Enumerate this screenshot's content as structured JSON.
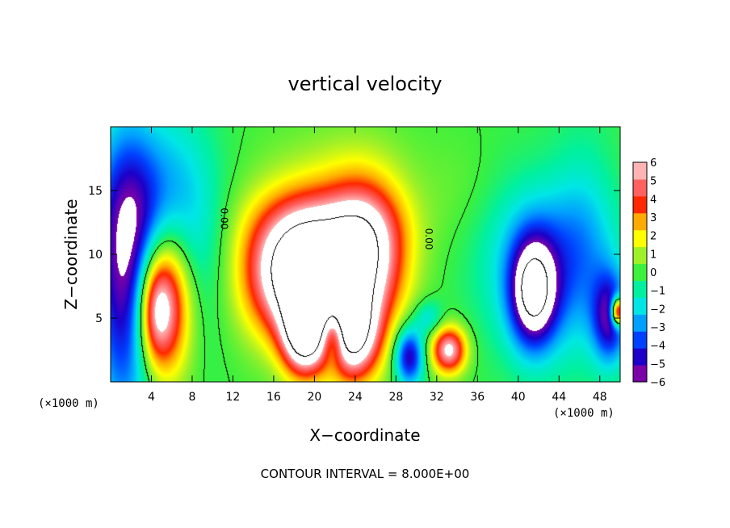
{
  "chart_data": {
    "type": "heatmap",
    "title": "vertical velocity",
    "xlabel": "X−coordinate",
    "ylabel": "Z−coordinate",
    "x_unit_label": "(×1000 m)",
    "z_unit_label": "(×1000 m)",
    "xlim": [
      0,
      50
    ],
    "ylim": [
      0,
      20
    ],
    "x_ticks": [
      4,
      8,
      12,
      16,
      20,
      24,
      28,
      32,
      36,
      40,
      44,
      48
    ],
    "y_ticks": [
      5,
      10,
      15
    ],
    "x_tick_labels": [
      "4",
      "8",
      "12",
      "16",
      "20",
      "24",
      "28",
      "32",
      "36",
      "40",
      "44",
      "48"
    ],
    "y_tick_labels": [
      "5",
      "10",
      "15"
    ],
    "colorbar": {
      "min": -6,
      "max": 6,
      "tick_values": [
        6,
        5,
        4,
        3,
        2,
        1,
        0,
        -1,
        -2,
        -3,
        -4,
        -5,
        -6
      ],
      "tick_labels": [
        "6",
        "5",
        "4",
        "3",
        "2",
        "1",
        "0",
        "−1",
        "−2",
        "−3",
        "−4",
        "−5",
        "−6"
      ],
      "colors": [
        "#7a00a8",
        "#1c00c8",
        "#0040ff",
        "#00a0ff",
        "#00e6e6",
        "#00f0a0",
        "#3cf03c",
        "#a0f028",
        "#ffff00",
        "#ffaa00",
        "#ff2800",
        "#ff6060",
        "#ffb4b4"
      ]
    },
    "contour_labels": [
      {
        "text": "0.00",
        "x": 10.8,
        "y": 12.8
      },
      {
        "text": "0.00",
        "x": 30.9,
        "y": 11.2
      }
    ],
    "footer": "CONTOUR INTERVAL = 8.000E+00",
    "field_features": [
      {
        "x": 5.5,
        "z": 6.5,
        "sx": 1.8,
        "sz": 4.2,
        "a": 7
      },
      {
        "x": 4.2,
        "z": 5.5,
        "sx": 1.2,
        "sz": 3,
        "a": 4
      },
      {
        "x": 1.4,
        "z": 8,
        "sx": 2.2,
        "sz": 8,
        "a": -5.5
      },
      {
        "x": 6.5,
        "z": 12,
        "sx": 3,
        "sz": 6,
        "a": -3
      },
      {
        "x": 2.5,
        "z": 14,
        "sx": 3,
        "sz": 4,
        "a": -1.5
      },
      {
        "x": 16.5,
        "z": 8.5,
        "sx": 3,
        "sz": 3.5,
        "a": 5.5
      },
      {
        "x": 19.5,
        "z": 8,
        "sx": 2.5,
        "sz": 3.5,
        "a": 6.5
      },
      {
        "x": 19,
        "z": 3.5,
        "sx": 1.5,
        "sz": 2.2,
        "a": 7
      },
      {
        "x": 24.8,
        "z": 9.5,
        "sx": 2.8,
        "sz": 4,
        "a": 8
      },
      {
        "x": 23.8,
        "z": 3.5,
        "sx": 1.8,
        "sz": 2.5,
        "a": 7
      },
      {
        "x": 21,
        "z": 12.5,
        "sx": 5,
        "sz": 2.5,
        "a": 2.5
      },
      {
        "x": 22,
        "z": 17.5,
        "sx": 5,
        "sz": 2.5,
        "a": 0.6
      },
      {
        "x": 33.2,
        "z": 2.5,
        "sx": 1.2,
        "sz": 1.3,
        "a": 6.5
      },
      {
        "x": 29.3,
        "z": 2,
        "sx": 1,
        "sz": 1.6,
        "a": -5.5
      },
      {
        "x": 21.8,
        "z": 3.5,
        "sx": 0.8,
        "sz": 1.5,
        "a": -4
      },
      {
        "x": 31.2,
        "z": 5,
        "sx": 1,
        "sz": 1,
        "a": -2
      },
      {
        "x": 41.5,
        "z": 7,
        "sx": 1.6,
        "sz": 3,
        "a": -7
      },
      {
        "x": 42,
        "z": 9.5,
        "sx": 4,
        "sz": 5,
        "a": -3
      },
      {
        "x": 49,
        "z": 5,
        "sx": 1.2,
        "sz": 2.5,
        "a": -5
      },
      {
        "x": 49.8,
        "z": 5.5,
        "sx": 0.5,
        "sz": 0.8,
        "a": 9
      },
      {
        "x": 46.5,
        "z": 11,
        "sx": 2.5,
        "sz": 6,
        "a": -2
      },
      {
        "x": 34.5,
        "z": 15,
        "sx": 3,
        "sz": 3,
        "a": 0.4
      },
      {
        "x": 44.5,
        "z": 16,
        "sx": 4,
        "sz": 3,
        "a": 0.5
      }
    ]
  }
}
